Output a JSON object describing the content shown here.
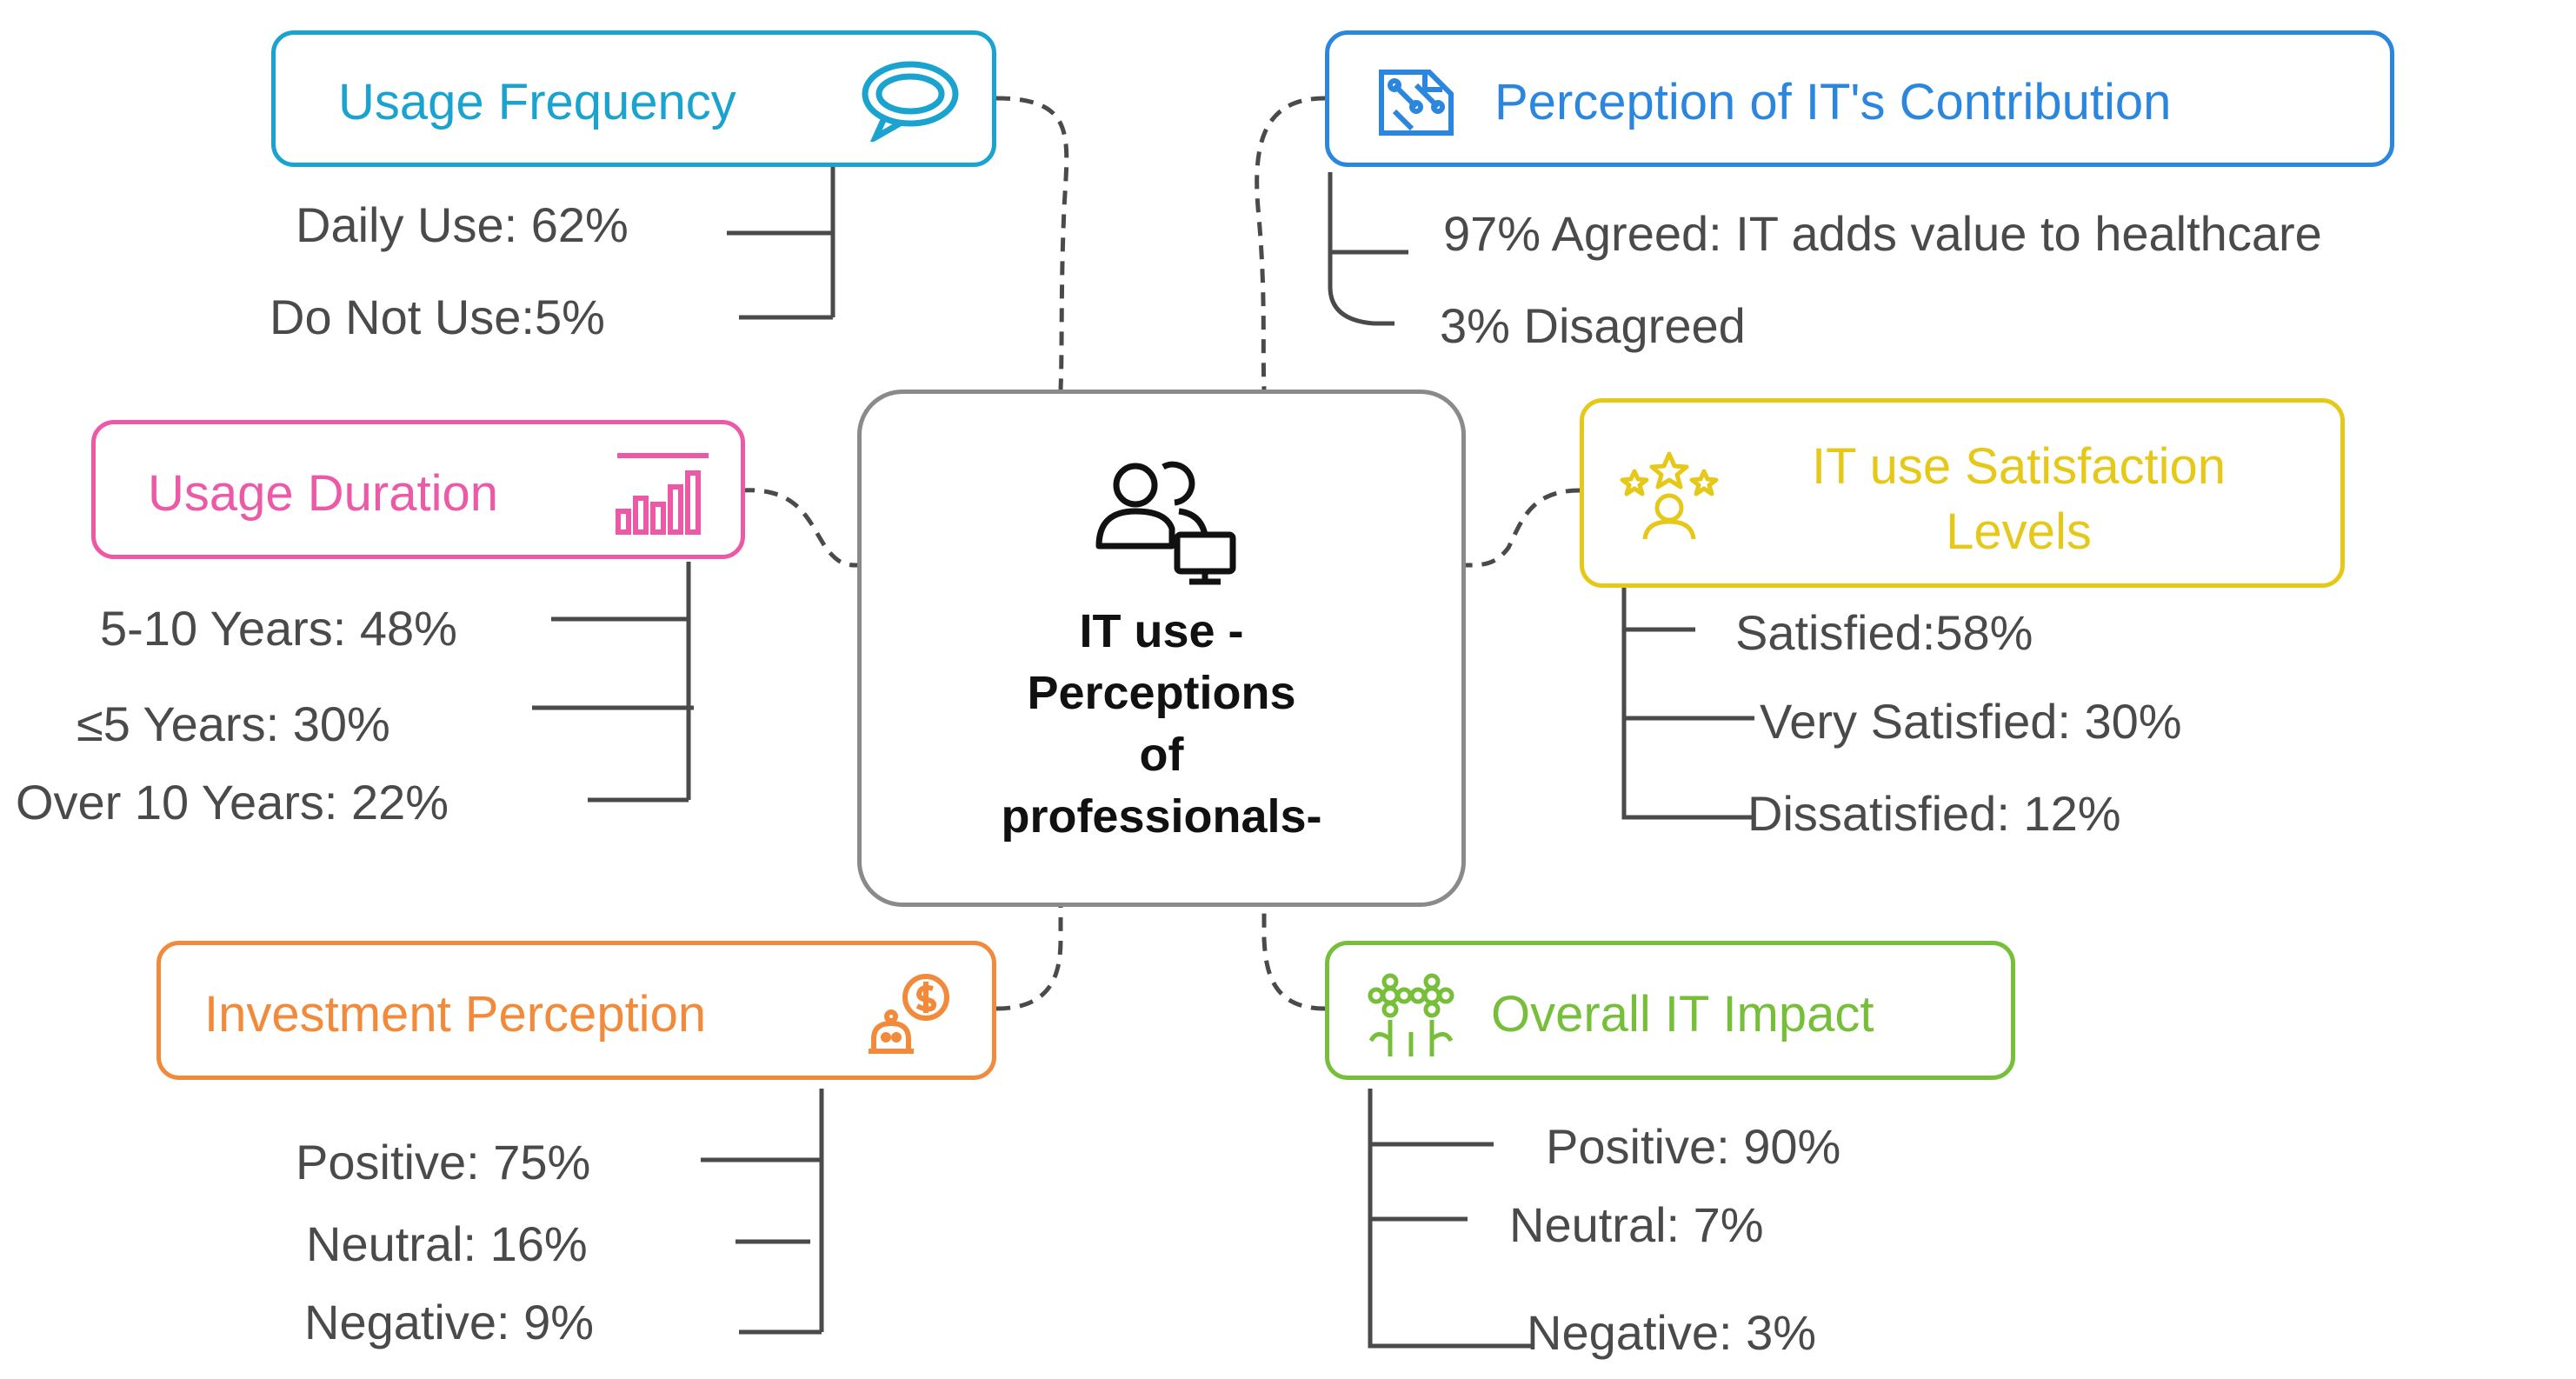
{
  "center": {
    "title": "IT use -\nPerceptions\nof\nprofessionals-",
    "icon": "users-monitor-icon"
  },
  "categories": {
    "usage_frequency": {
      "title": "Usage Frequency",
      "color": "#1aa3cf",
      "icon": "chat-bubble-icon",
      "items": [
        "Daily Use: 62%",
        "Do Not Use:5%"
      ]
    },
    "perception_contribution": {
      "title": "Perception of IT's Contribution",
      "color": "#2b86de",
      "icon": "circuit-chip-icon",
      "items": [
        "97% Agreed: IT adds value to healthcare",
        "3% Disagreed"
      ]
    },
    "usage_duration": {
      "title": "Usage Duration",
      "color": "#ec5aa7",
      "icon": "bar-chart-icon",
      "items": [
        "5-10 Years: 48%",
        "≤5 Years: 30%",
        "Over 10 Years: 22%"
      ]
    },
    "satisfaction": {
      "title": "IT use Satisfaction\nLevels",
      "color": "#e6c819",
      "icon": "stars-person-icon",
      "items": [
        "Satisfied:58%",
        "Very Satisfied: 30%",
        "Dissatisfied: 12%"
      ]
    },
    "investment": {
      "title": "Investment Perception",
      "color": "#f28a3c",
      "icon": "money-bot-icon",
      "items": [
        "Positive: 75%",
        "Neutral: 16%",
        "Negative: 9%"
      ]
    },
    "overall_impact": {
      "title": "Overall IT Impact",
      "color": "#77bf3a",
      "icon": "flowers-icon",
      "items": [
        "Positive: 90%",
        "Neutral: 7%",
        "Negative: 3%"
      ]
    }
  }
}
